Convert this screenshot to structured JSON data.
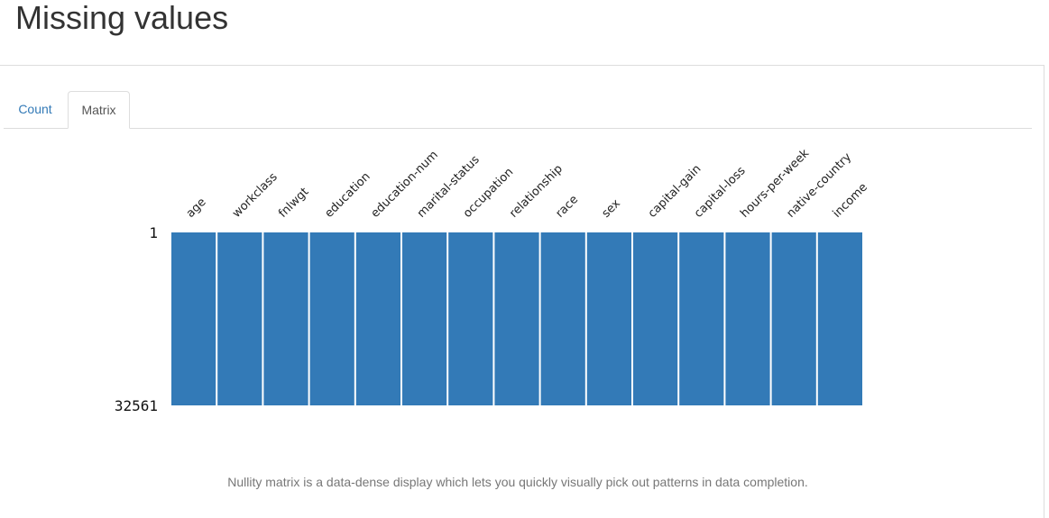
{
  "page": {
    "title": "Missing values"
  },
  "tabs": [
    {
      "label": "Count",
      "active": false
    },
    {
      "label": "Matrix",
      "active": true
    }
  ],
  "colors": {
    "fill": "#337ab7",
    "link": "#337ab7",
    "border": "#dddddd"
  },
  "chart_data": {
    "type": "heatmap",
    "columns": [
      "age",
      "workclass",
      "fnlwgt",
      "education",
      "education-num",
      "marital-status",
      "occupation",
      "relationship",
      "race",
      "sex",
      "capital-gain",
      "capital-loss",
      "hours-per-week",
      "native-country",
      "income"
    ],
    "rows": {
      "first": "1",
      "last": "32561"
    },
    "completeness": [
      1,
      1,
      1,
      1,
      1,
      1,
      1,
      1,
      1,
      1,
      1,
      1,
      1,
      1,
      1
    ]
  },
  "caption": "Nullity matrix is a data-dense display which lets you quickly visually pick out patterns in data completion."
}
